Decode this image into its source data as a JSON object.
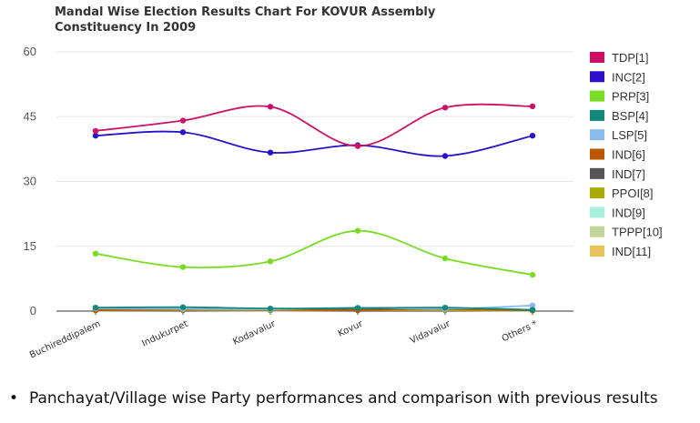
{
  "chart_data": {
    "type": "line",
    "title_lines": [
      "Mandal Wise Election Results Chart For KOVUR Assembly",
      "Constituency In 2009"
    ],
    "categories": [
      "Buchireddipalem",
      "Indukurpet",
      "Kodavalur",
      "Kovur",
      "Vidavalur",
      "Others *"
    ],
    "ylim": [
      0,
      60
    ],
    "yticks": [
      0,
      15,
      30,
      45,
      60
    ],
    "grid": "horizontal",
    "legend_position": "right",
    "series": [
      {
        "name": "TDP[1]",
        "color": "#cc1166",
        "values": [
          41.7,
          44.1,
          47.3,
          38.2,
          47.1,
          47.4
        ]
      },
      {
        "name": "INC[2]",
        "color": "#2a12c9",
        "values": [
          40.6,
          41.4,
          36.7,
          38.4,
          35.9,
          40.6
        ]
      },
      {
        "name": "PRP[3]",
        "color": "#77dd22",
        "values": [
          13.3,
          10.2,
          11.5,
          18.6,
          12.2,
          8.4
        ]
      },
      {
        "name": "BSP[4]",
        "color": "#11887a",
        "values": [
          0.8,
          0.9,
          0.6,
          0.7,
          0.8,
          0.3
        ]
      },
      {
        "name": "LSP[5]",
        "color": "#88bbee",
        "values": [
          0.6,
          0.5,
          0.4,
          0.8,
          0.5,
          1.3
        ]
      },
      {
        "name": "IND[6]",
        "color": "#bb5500",
        "values": [
          0.2,
          0.3,
          0.3,
          0.2,
          0.4,
          0.2
        ]
      },
      {
        "name": "IND[7]",
        "color": "#555555",
        "values": [
          0.3,
          0.4,
          0.5,
          0.3,
          0.6,
          0.2
        ]
      },
      {
        "name": "PPOI[8]",
        "color": "#aaaa00",
        "values": [
          0.2,
          0.2,
          0.2,
          0.3,
          0.2,
          0.1
        ]
      },
      {
        "name": "IND[9]",
        "color": "#aaeedd",
        "values": [
          0.3,
          0.3,
          0.2,
          0.4,
          0.3,
          0.2
        ]
      },
      {
        "name": "TPPP[10]",
        "color": "#c2d69b",
        "values": [
          0.1,
          0.2,
          0.2,
          0.2,
          0.2,
          0.1
        ]
      },
      {
        "name": "IND[11]",
        "color": "#e8c35a",
        "values": [
          0.2,
          0.2,
          0.1,
          0.2,
          0.2,
          0.2
        ]
      }
    ]
  },
  "footer": {
    "bullet": "•",
    "text": "Panchayat/Village wise Party performances and comparison with previous results"
  }
}
